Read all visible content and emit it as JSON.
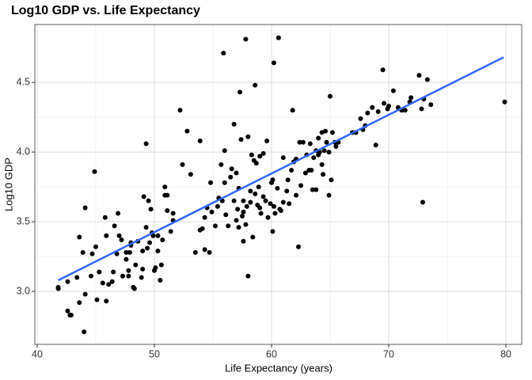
{
  "chart_data": {
    "type": "scatter",
    "title": "Log10 GDP vs. Life Expectancy",
    "x_label": "Life Expectancy (years)",
    "y_label": "Log10 GDP",
    "xlim": [
      39.8,
      81.35
    ],
    "ylim": [
      2.62,
      4.915
    ],
    "xticks": [
      40,
      50,
      60,
      70,
      80
    ],
    "yticks": [
      {
        "value": 3,
        "label": "3.0"
      },
      3.5,
      {
        "value": 4,
        "label": "4.0"
      },
      4.5
    ],
    "grid": true,
    "point_color": "#000000",
    "x": [
      41.8,
      41.8,
      42.6,
      42.6,
      42.8,
      42.9,
      43.4,
      43.6,
      43.6,
      43.9,
      44.0,
      44.1,
      44.1,
      44.6,
      44.7,
      44.9,
      45.0,
      45.1,
      45.3,
      45.6,
      45.8,
      45.9,
      45.9,
      46.1,
      46.4,
      46.5,
      46.6,
      46.8,
      46.9,
      47.0,
      47.2,
      47.3,
      47.6,
      47.6,
      47.8,
      47.8,
      47.9,
      48.0,
      48.0,
      48.2,
      48.3,
      48.4,
      48.6,
      48.9,
      49.0,
      49.0,
      49.1,
      49.3,
      49.3,
      49.4,
      49.5,
      49.6,
      49.7,
      49.8,
      49.9,
      50.0,
      50.1,
      50.3,
      50.3,
      50.5,
      50.6,
      50.7,
      50.9,
      50.9,
      51.1,
      51.1,
      51.4,
      51.6,
      51.6,
      52.2,
      52.4,
      52.8,
      53.1,
      53.5,
      53.9,
      53.9,
      54.1,
      54.3,
      54.3,
      54.5,
      54.7,
      54.8,
      54.9,
      55.2,
      55.4,
      55.5,
      55.7,
      55.8,
      55.9,
      56.0,
      56.0,
      56.1,
      56.3,
      56.5,
      56.6,
      56.8,
      56.8,
      57.0,
      57.0,
      57.1,
      57.2,
      57.2,
      57.3,
      57.4,
      57.5,
      57.6,
      57.6,
      57.6,
      57.8,
      57.8,
      57.9,
      58.0,
      58.0,
      58.2,
      58.2,
      58.3,
      58.4,
      58.5,
      58.6,
      58.6,
      58.7,
      58.8,
      58.9,
      59.0,
      59.0,
      59.1,
      59.3,
      59.3,
      59.5,
      59.6,
      59.7,
      59.9,
      60.0,
      60.1,
      60.1,
      60.2,
      60.2,
      60.3,
      60.5,
      60.6,
      60.7,
      60.8,
      61.0,
      61.0,
      61.3,
      61.4,
      61.5,
      61.7,
      61.8,
      61.9,
      62.1,
      62.1,
      62.3,
      62.4,
      62.5,
      62.7,
      62.9,
      63.0,
      63.2,
      63.3,
      63.4,
      63.5,
      63.6,
      63.8,
      63.8,
      64.0,
      64.0,
      64.1,
      64.3,
      64.3,
      64.4,
      64.5,
      64.6,
      64.7,
      64.9,
      64.9,
      65.0,
      65.1,
      65.2,
      65.4,
      65.5,
      65.7,
      66.9,
      67.2,
      67.6,
      67.8,
      68.0,
      68.2,
      68.6,
      68.9,
      69.1,
      69.5,
      69.6,
      69.9,
      70.0,
      70.4,
      70.8,
      71.1,
      71.4,
      71.8,
      71.9,
      72.6,
      72.9,
      73.0,
      72.8,
      73.3,
      73.6,
      79.9
    ],
    "y": [
      3.03,
      3.02,
      3.07,
      2.86,
      2.83,
      2.83,
      3.1,
      2.92,
      3.39,
      3.28,
      2.71,
      3.6,
      2.98,
      3.11,
      3.27,
      3.86,
      3.32,
      2.94,
      3.14,
      3.06,
      3.53,
      2.93,
      3.4,
      3.05,
      3.07,
      3.14,
      3.47,
      3.27,
      3.56,
      3.4,
      3.37,
      3.11,
      3.28,
      3.23,
      3.15,
      3.11,
      3.28,
      3.33,
      3.35,
      3.03,
      3.02,
      3.19,
      3.36,
      3.1,
      3.16,
      3.29,
      3.68,
      4.06,
      3.46,
      3.31,
      3.65,
      3.35,
      3.59,
      3.42,
      3.4,
      3.15,
      3.17,
      3.29,
      3.4,
      3.08,
      3.19,
      3.37,
      3.69,
      3.75,
      3.69,
      3.58,
      3.43,
      3.56,
      3.51,
      4.3,
      3.91,
      4.15,
      3.84,
      3.28,
      4.08,
      3.44,
      3.45,
      3.3,
      3.53,
      3.6,
      3.28,
      3.78,
      3.57,
      3.47,
      3.61,
      3.67,
      3.91,
      3.65,
      4.71,
      4.01,
      3.78,
      3.55,
      3.47,
      3.82,
      3.88,
      4.2,
      3.65,
      3.85,
      3.51,
      3.59,
      3.46,
      3.74,
      4.43,
      4.09,
      3.54,
      3.36,
      3.65,
      3.57,
      3.48,
      4.81,
      3.61,
      4.11,
      3.11,
      3.72,
      3.64,
      3.98,
      3.39,
      3.94,
      3.7,
      4.48,
      3.92,
      3.62,
      3.75,
      3.97,
      3.6,
      3.56,
      3.68,
      3.99,
      3.65,
      4.08,
      3.53,
      3.63,
      3.78,
      3.8,
      3.43,
      4.64,
      3.61,
      3.56,
      3.74,
      4.82,
      3.59,
      3.58,
      3.96,
      3.64,
      3.72,
      3.8,
      3.63,
      3.87,
      4.3,
      3.93,
      3.95,
      3.69,
      3.32,
      4.07,
      3.76,
      4.07,
      3.85,
      3.98,
      3.87,
      4.06,
      3.87,
      3.73,
      3.96,
      4.01,
      3.73,
      4.1,
      3.98,
      4.0,
      4.14,
      3.91,
      3.84,
      4.01,
      4.15,
      4.07,
      4.0,
      3.69,
      4.4,
      3.8,
      4.14,
      4.07,
      4.04,
      4.07,
      4.14,
      4.14,
      4.24,
      4.16,
      4.19,
      4.28,
      4.32,
      4.05,
      4.29,
      4.59,
      4.35,
      4.31,
      4.33,
      4.44,
      4.32,
      4.3,
      4.3,
      4.36,
      4.39,
      4.55,
      3.64,
      4.38,
      4.31,
      4.52,
      4.34,
      4.36
    ],
    "trend": {
      "color": "#3366ff",
      "x": [
        41.8,
        79.8
      ],
      "y": [
        3.08,
        4.68
      ]
    }
  }
}
